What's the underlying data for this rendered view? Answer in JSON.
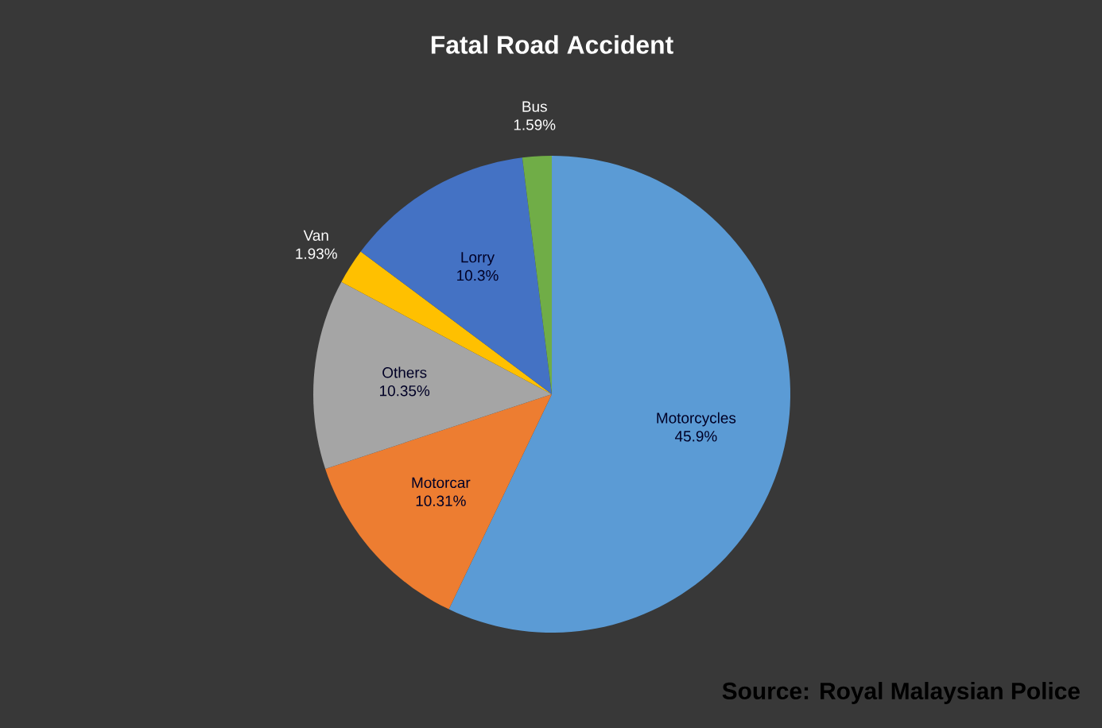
{
  "chart_data": {
    "type": "pie",
    "title": "Fatal Road Accident",
    "categories": [
      "Motorcycles",
      "Motorcar",
      "Others",
      "Van",
      "Lorry",
      "Bus"
    ],
    "values": [
      45.9,
      10.31,
      10.35,
      1.93,
      10.3,
      1.59
    ],
    "value_labels": [
      "45.9%",
      "10.31%",
      "10.35%",
      "1.93%",
      "10.3%",
      "1.59%"
    ],
    "colors": [
      "#5b9bd5",
      "#ed7d31",
      "#a5a5a5",
      "#ffc000",
      "#4472c4",
      "#70ad47"
    ],
    "annotations": [
      "Source: Royal Malaysian Police"
    ]
  }
}
